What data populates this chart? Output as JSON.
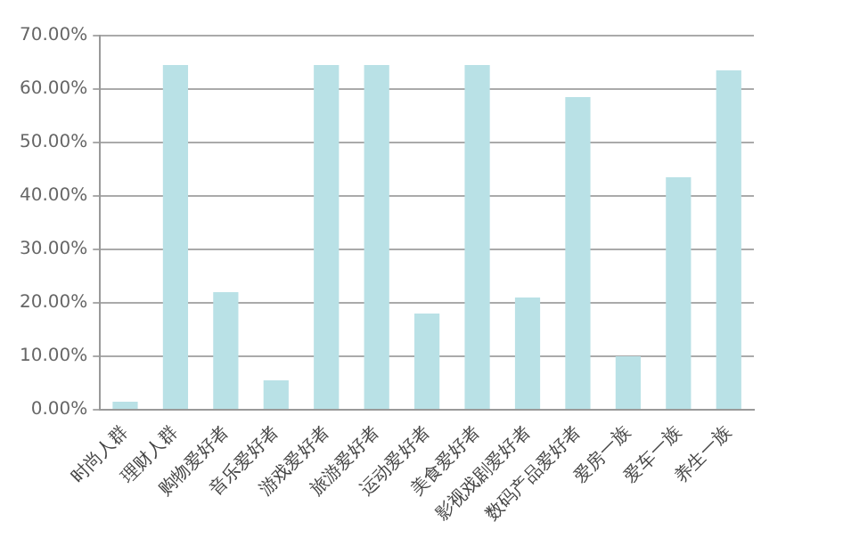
{
  "chart_data": {
    "type": "bar",
    "categories": [
      "时尚人群",
      "理财人群",
      "购物爱好者",
      "音乐爱好者",
      "游戏爱好者",
      "旅游爱好者",
      "运动爱好者",
      "美食爱好者",
      "影视戏剧爱好者",
      "数码产品爱好者",
      "爱房一族",
      "爱车一族",
      "养生一族"
    ],
    "values": [
      1.5,
      64.5,
      22,
      5.5,
      64.5,
      64.5,
      18,
      64.5,
      21,
      58.5,
      10,
      43.5,
      63.5
    ],
    "color": "#b9e1e6",
    "ylim": [
      0,
      70
    ],
    "yticks": [
      {
        "value": 0,
        "label": "0.00%"
      },
      {
        "value": 10,
        "label": "10.00%"
      },
      {
        "value": 20,
        "label": "20.00%"
      },
      {
        "value": 30,
        "label": "30.00%"
      },
      {
        "value": 40,
        "label": "40.00%"
      },
      {
        "value": 50,
        "label": "50.00%"
      },
      {
        "value": 60,
        "label": "60.00%"
      },
      {
        "value": 70,
        "label": "70.00%"
      }
    ],
    "grid": "y",
    "legend": false
  }
}
